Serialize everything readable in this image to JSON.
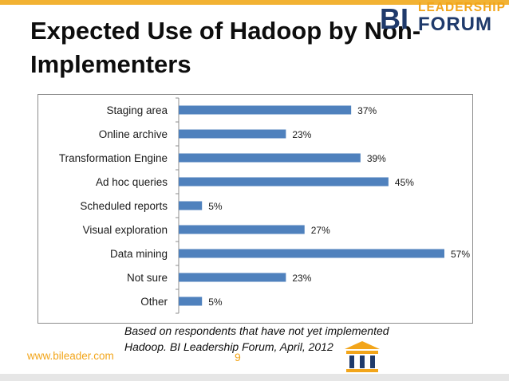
{
  "title": "Expected Use of Hadoop by Non-Implementers",
  "footnote": {
    "line1": "Based on respondents that have not yet implemented",
    "line2": "Hadoop. BI Leadership Forum, April, 2012"
  },
  "footer": {
    "website": "www.bileader.com",
    "page_number": "9"
  },
  "logo": {
    "bi": "BI",
    "top_word": "LEADERSHIP",
    "bottom_word": "FORUM"
  },
  "colors": {
    "bar": "#4f81bd",
    "accent": "#f2a51a",
    "brand_navy": "#1f3a6b"
  },
  "chart_data": {
    "type": "bar",
    "orientation": "horizontal",
    "categories": [
      "Staging area",
      "Online archive",
      "Transformation Engine",
      "Ad hoc queries",
      "Scheduled reports",
      "Visual exploration",
      "Data mining",
      "Not sure",
      "Other"
    ],
    "values": [
      37,
      23,
      39,
      45,
      5,
      27,
      57,
      23,
      5
    ],
    "value_suffix": "%",
    "xlim": [
      0,
      57
    ],
    "grid": false,
    "legend": "none"
  }
}
